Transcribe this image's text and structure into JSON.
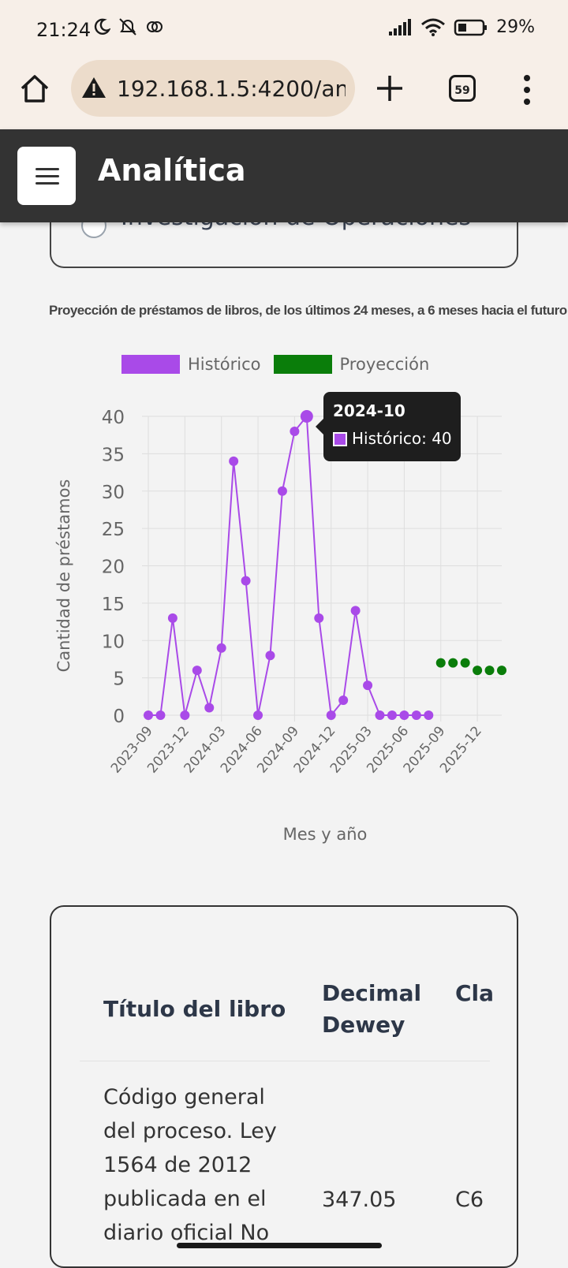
{
  "status_bar": {
    "time": "21:24",
    "battery": "29%"
  },
  "browser": {
    "url": "192.168.1.5:4200/ana",
    "tab_count": "59"
  },
  "header": {
    "title": "Analítica"
  },
  "top_card": {
    "radio_label": "Investigación de Operaciones"
  },
  "chart_data": {
    "type": "line",
    "title": "Proyección de préstamos de libros, de los últimos 24 meses, a 6 meses hacia el futuro",
    "xlabel": "Mes y año",
    "ylabel": "Cantidad de préstamos",
    "ylim": [
      0,
      40
    ],
    "y_ticks": [
      "0",
      "5",
      "10",
      "15",
      "20",
      "25",
      "30",
      "35",
      "40"
    ],
    "x_tick_labels": [
      "2023-09",
      "2023-12",
      "2024-03",
      "2024-06",
      "2024-09",
      "2024-12",
      "2025-03",
      "2025-06",
      "2025-09",
      "2025-12"
    ],
    "categories": [
      "2023-09",
      "2023-10",
      "2023-11",
      "2023-12",
      "2024-01",
      "2024-02",
      "2024-03",
      "2024-04",
      "2024-05",
      "2024-06",
      "2024-07",
      "2024-08",
      "2024-09",
      "2024-10",
      "2024-11",
      "2024-12",
      "2025-01",
      "2025-02",
      "2025-03",
      "2025-04",
      "2025-05",
      "2025-06",
      "2025-07",
      "2025-08",
      "2025-09",
      "2025-10",
      "2025-11",
      "2025-12",
      "2026-01",
      "2026-02"
    ],
    "grid": true,
    "legend": "top",
    "series": [
      {
        "name": "Histórico",
        "color": "#a94ae8",
        "values": [
          0,
          0,
          13,
          0,
          6,
          1,
          9,
          34,
          18,
          0,
          8,
          30,
          38,
          40,
          13,
          0,
          2,
          14,
          4,
          0,
          0,
          0,
          0,
          0,
          null,
          null,
          null,
          null,
          null,
          null
        ]
      },
      {
        "name": "Proyección",
        "color": "#0a7d0a",
        "values": [
          null,
          null,
          null,
          null,
          null,
          null,
          null,
          null,
          null,
          null,
          null,
          null,
          null,
          null,
          null,
          null,
          null,
          null,
          null,
          null,
          null,
          null,
          null,
          null,
          7,
          7,
          7,
          6,
          6,
          6
        ]
      }
    ],
    "tooltip": {
      "title": "2024-10",
      "label": "Histórico: 40"
    }
  },
  "table": {
    "headers": [
      "Título del libro",
      "Decimal Dewey",
      "Cla au"
    ],
    "rows": [
      {
        "title": "Código general del proceso. Ley 1564 de 2012 publicada en el diario oficial No",
        "dewey": "347.05",
        "clas": "C6"
      }
    ]
  }
}
